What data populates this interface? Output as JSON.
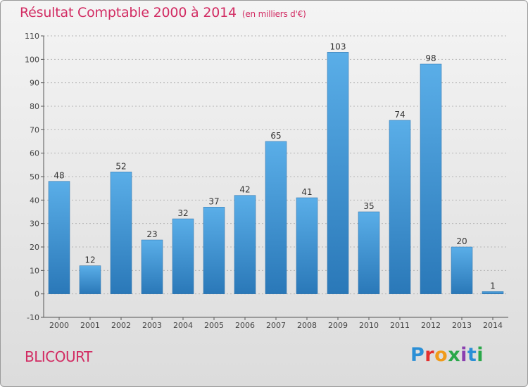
{
  "page": {
    "title": "Résultat Comptable 2000 à 2014",
    "subtitle": "(en milliers d'€)",
    "commune": "BLICOURT",
    "logo": [
      "P",
      "r",
      "o",
      "x",
      "i",
      "t",
      "i"
    ]
  },
  "colors": {
    "title": "#d22c63",
    "bar_top": "#5aaee8",
    "bar_bottom": "#2a78b8",
    "logo": [
      "#2b8fd6",
      "#e3302f",
      "#f09a1a",
      "#2aa84a",
      "#8a3fb0",
      "#2b8fd6",
      "#2aa84a"
    ]
  },
  "chart_data": {
    "type": "bar",
    "title": "Résultat Comptable 2000 à 2014",
    "subtitle": "(en milliers d'€)",
    "categories": [
      "2000",
      "2001",
      "2002",
      "2003",
      "2004",
      "2005",
      "2006",
      "2007",
      "2008",
      "2009",
      "2010",
      "2011",
      "2012",
      "2013",
      "2014"
    ],
    "values": [
      48,
      12,
      52,
      23,
      32,
      37,
      42,
      65,
      41,
      103,
      35,
      74,
      98,
      20,
      1
    ],
    "data_labels": [
      "48",
      "12",
      "52",
      "23",
      "32",
      "37",
      "42",
      "65",
      "41",
      "103",
      "35",
      "74",
      "98",
      "20",
      "1"
    ],
    "ylim": [
      -10,
      110
    ],
    "yticks": [
      -10,
      0,
      10,
      20,
      30,
      40,
      50,
      60,
      70,
      80,
      90,
      100,
      110
    ],
    "ytick_labels": [
      "-10",
      "0",
      "10",
      "20",
      "30",
      "40",
      "50",
      "60",
      "70",
      "80",
      "90",
      "100",
      "110"
    ],
    "xlabel": "",
    "ylabel": "",
    "grid": true,
    "legend": false
  }
}
